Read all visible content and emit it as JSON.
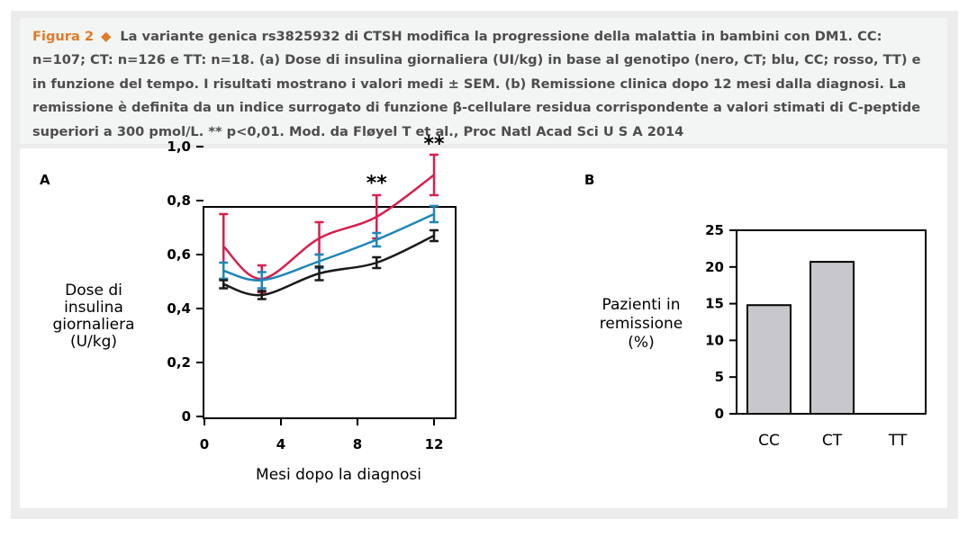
{
  "caption": {
    "figure_label": "Figura 2",
    "text": "La variante genica rs3825932 di CTSH modifica la progressione della malattia in bambini con DM1. CC: n=107; CT: n=126 e TT: n=18. (a) Dose di insulina giornaliera (UI/kg) in base al genotipo (nero, CT; blu, CC; rosso, TT) e in funzione del tempo. I risultati mostrano i valori medi ± SEM. (b) Remissione clinica dopo 12 mesi dalla diagnosi. La remissione è definita da un indice surrogato di funzione β-cellulare residua corrispondente a valori stimati di C-peptide superiori a 300 pmol/L. ** p<0,01. Mod. da Fløyel T et al., Proc Natl Acad Sci U S A 2014"
  },
  "chart_data": [
    {
      "panel_label": "A",
      "type": "line",
      "xlabel": "Mesi dopo la diagnosi",
      "ylabel": [
        "Dose di",
        "insulina",
        "giornaliera",
        "(U/kg)"
      ],
      "x_ticks": [
        0,
        4,
        8,
        12
      ],
      "x_tick_labels": [
        "0",
        "4",
        "8",
        "12"
      ],
      "y_ticks": [
        0,
        0.2,
        0.4,
        0.6,
        0.8,
        1.0
      ],
      "y_tick_labels": [
        "0",
        "0,2",
        "0,4",
        "0,6",
        "0,8",
        "1,0"
      ],
      "x": [
        1,
        3,
        6,
        9,
        12
      ],
      "series": [
        {
          "color": "#d6204e",
          "values": [
            0.63,
            0.51,
            0.66,
            0.74,
            0.895
          ],
          "errors": [
            0.12,
            0.05,
            0.06,
            0.08,
            0.075
          ]
        },
        {
          "color": "#1f86b8",
          "values": [
            0.54,
            0.505,
            0.575,
            0.655,
            0.75
          ],
          "errors": [
            0.03,
            0.03,
            0.025,
            0.025,
            0.03
          ]
        },
        {
          "color": "#1a1a1a",
          "values": [
            0.49,
            0.45,
            0.53,
            0.57,
            0.67
          ],
          "errors": [
            0.015,
            0.015,
            0.025,
            0.02,
            0.02
          ]
        }
      ],
      "annotations": [
        {
          "x": 9,
          "y": 0.855,
          "text": "**"
        },
        {
          "x": 12,
          "y": 1.0,
          "text": "**"
        }
      ]
    },
    {
      "panel_label": "B",
      "type": "bar",
      "ylabel": [
        "Pazienti in",
        "remissione",
        "(%)"
      ],
      "categories": [
        "CC",
        "CT",
        "TT"
      ],
      "values": [
        14.8,
        20.7,
        0
      ],
      "ylim": [
        0,
        25
      ],
      "y_ticks": [
        0,
        5,
        10,
        15,
        20,
        25
      ],
      "bar_color": "#c8c8cc"
    }
  ]
}
